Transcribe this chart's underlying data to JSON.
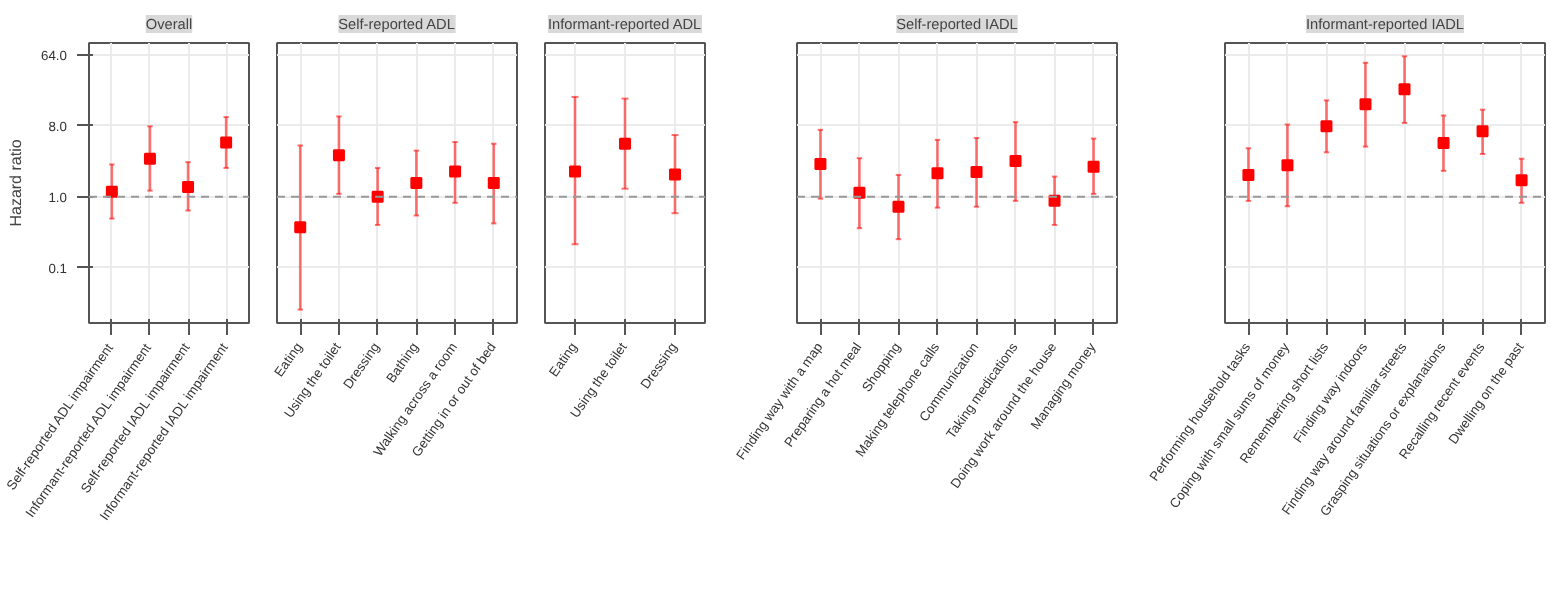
{
  "chart_data": [
    {
      "type": "scatter",
      "title": "Overall",
      "ylabel": "Hazard ratio",
      "color": "#ff0000",
      "marker": "square",
      "grid": true,
      "log": "y",
      "ylim": [
        0.025,
        90
      ],
      "yticks": [
        {
          "value": 0.125,
          "label": "0.1"
        },
        {
          "value": 1,
          "label": "1.0"
        },
        {
          "value": 8,
          "label": "8.0"
        },
        {
          "value": 64,
          "label": "64.0"
        }
      ],
      "ref_lines": [
        {
          "axis": "y",
          "value": 1,
          "line_style": "dashed",
          "color": "#999999"
        }
      ],
      "categories": [
        "Self-reported ADL impairment",
        "Informant-reported ADL impairment",
        "Self-reported IADL impairment",
        "Informant-reported IADL impairment"
      ],
      "values": [
        1.16,
        3.05,
        1.33,
        4.9
      ],
      "errors": [
        [
          0.53,
          2.58
        ],
        [
          1.2,
          7.87
        ],
        [
          0.67,
          2.76
        ],
        [
          2.33,
          10.3
        ]
      ]
    },
    {
      "type": "scatter",
      "title": "Self-reported ADL",
      "color": "#ff0000",
      "marker": "square",
      "grid": true,
      "log": "y",
      "tick_labels": "x",
      "ylim": [
        0.025,
        90
      ],
      "yticks": [
        {
          "value": 0.125,
          "label": null
        },
        {
          "value": 1,
          "label": null
        },
        {
          "value": 8,
          "label": null
        },
        {
          "value": 64,
          "label": null
        }
      ],
      "ref_lines": [
        {
          "axis": "y",
          "value": 1,
          "line_style": "dashed",
          "color": "#999999"
        }
      ],
      "categories": [
        "Eating",
        "Using the toilet",
        "Dressing",
        "Bathing",
        "Walking across a room",
        "Getting in or out of bed"
      ],
      "values": [
        0.41,
        3.38,
        1.0,
        1.5,
        2.1,
        1.5
      ],
      "errors": [
        [
          0.037,
          4.5
        ],
        [
          1.09,
          10.5
        ],
        [
          0.44,
          2.33
        ],
        [
          0.58,
          3.87
        ],
        [
          0.84,
          4.98
        ],
        [
          0.46,
          4.73
        ]
      ]
    },
    {
      "type": "scatter",
      "title": "Informant-reported ADL",
      "color": "#ff0000",
      "marker": "square",
      "grid": true,
      "log": "y",
      "tick_labels": "x",
      "ylim": [
        0.025,
        90
      ],
      "yticks": [
        {
          "value": 0.125,
          "label": null
        },
        {
          "value": 1,
          "label": null
        },
        {
          "value": 8,
          "label": null
        },
        {
          "value": 64,
          "label": null
        }
      ],
      "ref_lines": [
        {
          "axis": "y",
          "value": 1,
          "line_style": "dashed",
          "color": "#999999"
        }
      ],
      "categories": [
        "Eating",
        "Using the toilet",
        "Dressing"
      ],
      "values": [
        2.1,
        4.73,
        1.93
      ],
      "errors": [
        [
          0.25,
          18.6
        ],
        [
          1.27,
          17.7
        ],
        [
          0.62,
          6.1
        ]
      ]
    },
    {
      "type": "scatter",
      "title": "Self-reported IADL",
      "color": "#ff0000",
      "marker": "square",
      "grid": true,
      "log": "y",
      "tick_labels": "x",
      "ylim": [
        0.025,
        90
      ],
      "yticks": [
        {
          "value": 0.125,
          "label": null
        },
        {
          "value": 1,
          "label": null
        },
        {
          "value": 8,
          "label": null
        },
        {
          "value": 64,
          "label": null
        }
      ],
      "ref_lines": [
        {
          "axis": "y",
          "value": 1,
          "line_style": "dashed",
          "color": "#999999"
        }
      ],
      "categories": [
        "Finding way with a map",
        "Preparing a hot meal",
        "Shopping",
        "Making telephone calls",
        "Communication",
        "Taking medications",
        "Doing work around the house",
        "Managing money"
      ],
      "values": [
        2.62,
        1.13,
        0.75,
        2.0,
        2.07,
        2.85,
        0.89,
        2.41
      ],
      "errors": [
        [
          0.95,
          7.1
        ],
        [
          0.4,
          3.1
        ],
        [
          0.29,
          1.9
        ],
        [
          0.73,
          5.3
        ],
        [
          0.75,
          5.6
        ],
        [
          0.89,
          8.9
        ],
        [
          0.44,
          1.81
        ],
        [
          1.09,
          5.5
        ]
      ]
    },
    {
      "type": "scatter",
      "title": "Informant-reported IADL",
      "color": "#ff0000",
      "marker": "square",
      "grid": true,
      "log": "y",
      "tick_labels": "x",
      "ylim": [
        0.025,
        90
      ],
      "yticks": [
        {
          "value": 0.125,
          "label": null
        },
        {
          "value": 1,
          "label": null
        },
        {
          "value": 8,
          "label": null
        },
        {
          "value": 64,
          "label": null
        }
      ],
      "ref_lines": [
        {
          "axis": "y",
          "value": 1,
          "line_style": "dashed",
          "color": "#999999"
        }
      ],
      "categories": [
        "Performing household tasks",
        "Coping with small sums of money",
        "Remembering short lists",
        "Finding way indoors",
        "Finding way around familiar streets",
        "Grasping situations or explanations",
        "Recalling recent events",
        "Dwelling on the past"
      ],
      "values": [
        1.9,
        2.53,
        7.87,
        15,
        23.2,
        4.82,
        6.8,
        1.63
      ],
      "errors": [
        [
          0.89,
          4.14
        ],
        [
          0.76,
          8.3
        ],
        [
          3.68,
          16.8
        ],
        [
          4.35,
          50.5
        ],
        [
          8.7,
          61
        ],
        [
          2.14,
          10.8
        ],
        [
          3.5,
          12.8
        ],
        [
          0.84,
          3.05
        ]
      ]
    }
  ]
}
